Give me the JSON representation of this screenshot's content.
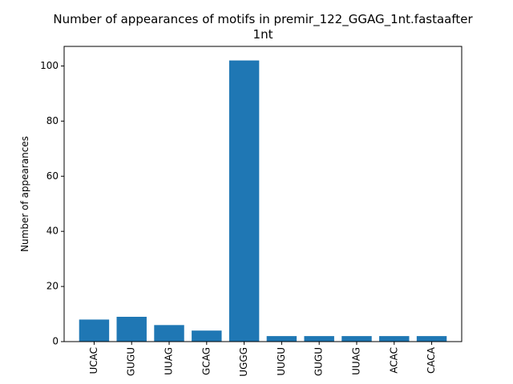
{
  "chart_data": {
    "type": "bar",
    "title_line1": "Number of appearances of motifs in premir_122_GGAG_1nt.fastaafter",
    "title_line2": "1nt",
    "xlabel": "",
    "ylabel": "Number of appearances",
    "categories": [
      "UCAC",
      "GUGU",
      "UUAG",
      "GCAG",
      "UGGG",
      "UUGU",
      "GUGU",
      "UUAG",
      "ACAC",
      "CACA"
    ],
    "values": [
      8,
      9,
      6,
      4,
      102,
      2,
      2,
      2,
      2,
      2
    ],
    "ylim": [
      0,
      107.1
    ],
    "yticks": [
      0,
      20,
      40,
      60,
      80,
      100
    ],
    "bar_color": "#1f77b4",
    "grid": false,
    "legend": "none"
  }
}
